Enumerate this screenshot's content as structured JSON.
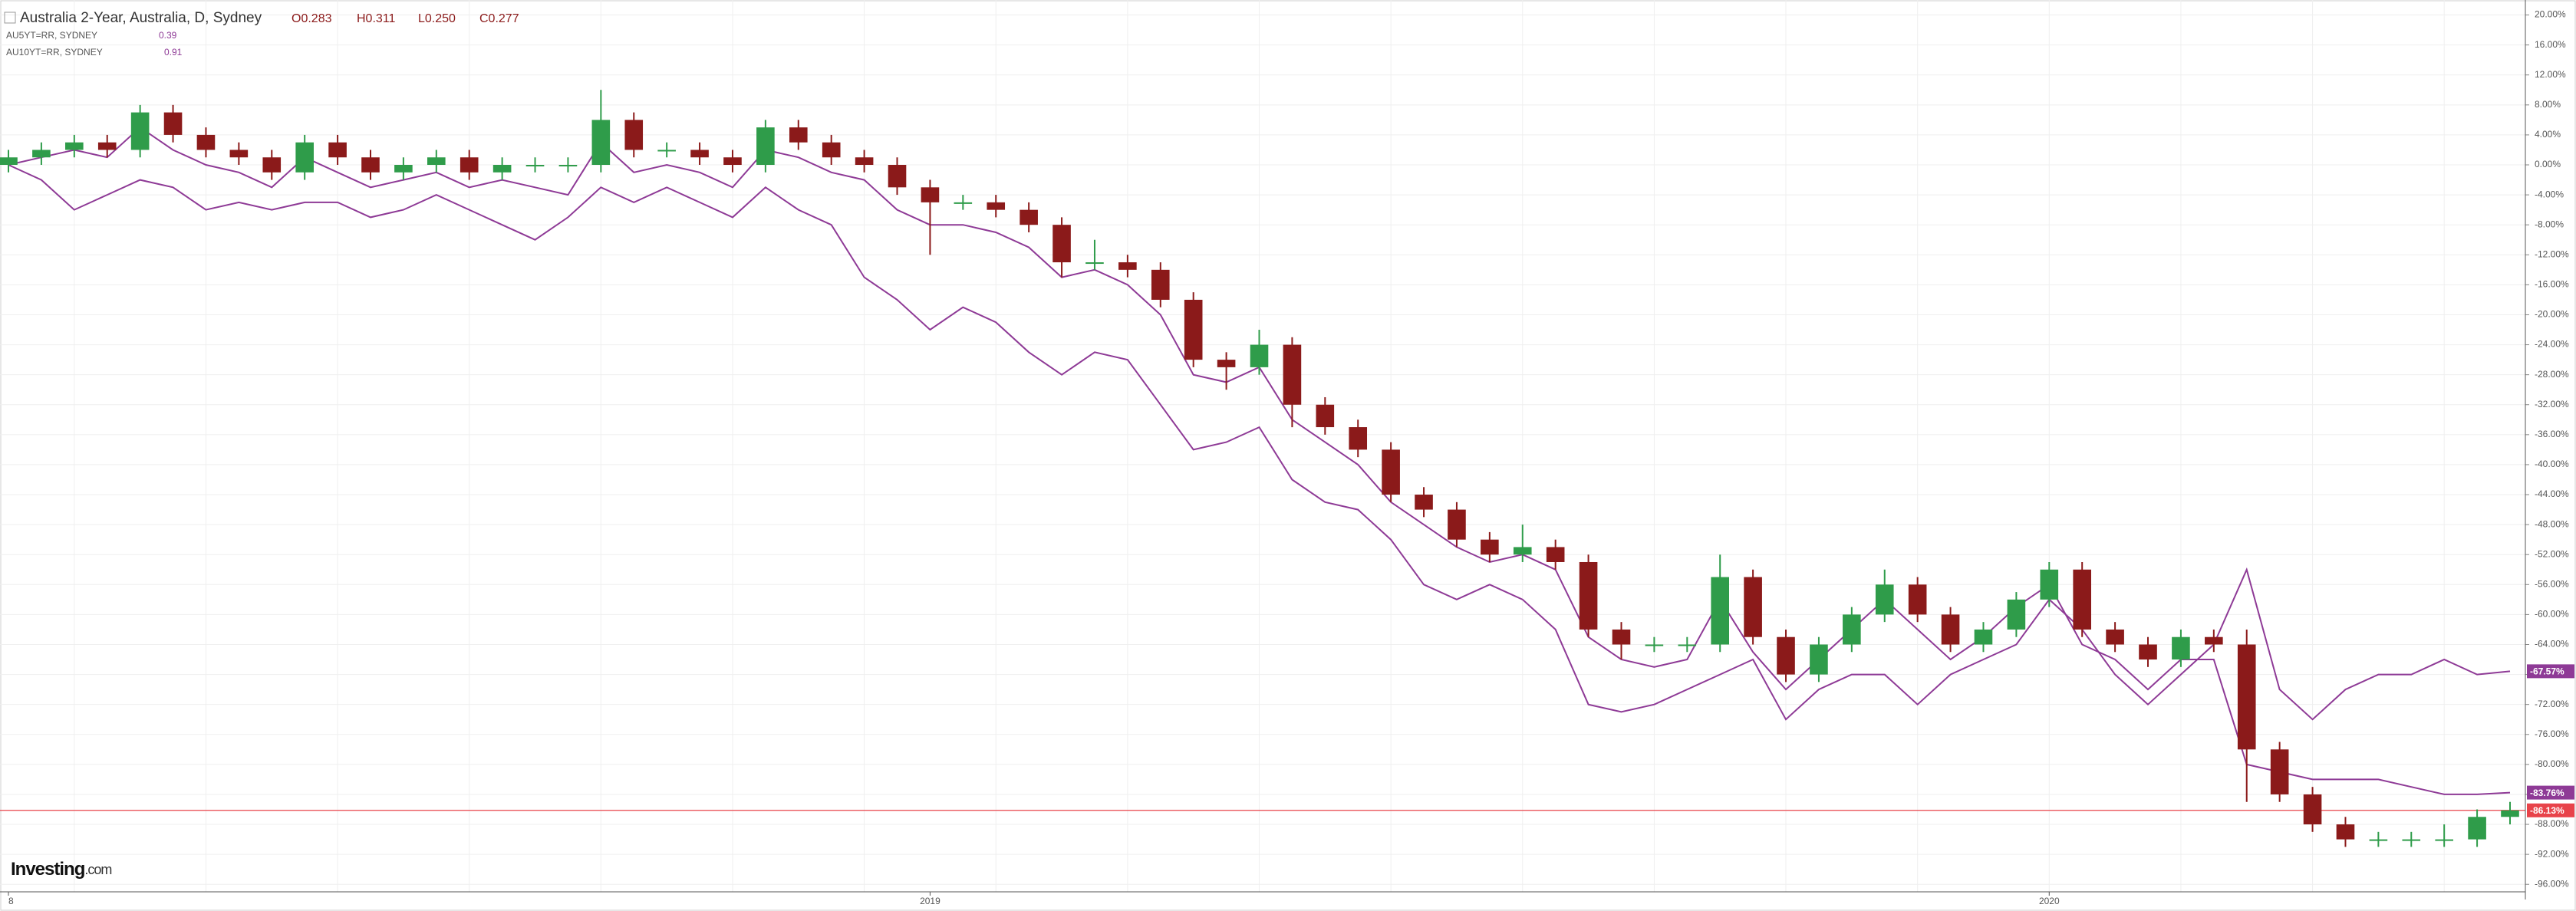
{
  "chart_data": {
    "type": "candlestick",
    "title": "Australia 2-Year, Australia, D, Sydney",
    "ohlc_labels": [
      "O0.283",
      "H0.311",
      "L0.250",
      "C0.277"
    ],
    "categories": [
      "8",
      null,
      null,
      null,
      null,
      null,
      null,
      null,
      null,
      null,
      null,
      null,
      null,
      null,
      null,
      null,
      null,
      null,
      null,
      null,
      null,
      null,
      null,
      null,
      null,
      null,
      null,
      null,
      "2019",
      null,
      null,
      null,
      null,
      null,
      null,
      null,
      null,
      null,
      null,
      null,
      null,
      null,
      null,
      null,
      null,
      null,
      null,
      null,
      null,
      null,
      null,
      null,
      null,
      null,
      null,
      null,
      null,
      null,
      null,
      null,
      null,
      null,
      "2020",
      null,
      null,
      null,
      null,
      null,
      null,
      null,
      null,
      null,
      null,
      null,
      null,
      null,
      null
    ],
    "candles": {
      "up_color": "#2f9c4a",
      "down_color": "#8b1a1a",
      "open": [
        0,
        1,
        2,
        3,
        2,
        7,
        4,
        2,
        1,
        -1,
        3,
        1,
        -1,
        0,
        1,
        -1,
        0,
        0,
        0,
        6,
        2,
        2,
        1,
        0,
        5,
        3,
        1,
        0,
        -3,
        -5,
        -5,
        -6,
        -8,
        -13,
        -13,
        -14,
        -18,
        -26,
        -27,
        -24,
        -32,
        -35,
        -38,
        -44,
        -46,
        -50,
        -52,
        -51,
        -53,
        -62,
        -64,
        -64,
        -64,
        -55,
        -63,
        -68,
        -64,
        -60,
        -56,
        -60,
        -64,
        -62,
        -58,
        -54,
        -62,
        -64,
        -66,
        -63,
        -64,
        -78,
        -84,
        -88,
        -90,
        -90,
        -90,
        -90,
        -87
      ],
      "high": [
        2,
        3,
        4,
        4,
        8,
        8,
        5,
        3,
        2,
        4,
        4,
        2,
        1,
        2,
        2,
        1,
        1,
        1,
        10,
        7,
        3,
        3,
        2,
        6,
        6,
        4,
        2,
        1,
        -2,
        -4,
        -4,
        -5,
        -7,
        -10,
        -12,
        -13,
        -17,
        -25,
        -22,
        -23,
        -31,
        -34,
        -37,
        -43,
        -45,
        -49,
        -48,
        -50,
        -52,
        -61,
        -63,
        -63,
        -52,
        -54,
        -62,
        -63,
        -59,
        -54,
        -55,
        -59,
        -61,
        -57,
        -53,
        -53,
        -61,
        -63,
        -62,
        -62,
        -62,
        -77,
        -83,
        -87,
        -89,
        -89,
        -88,
        -86,
        -85
      ],
      "low": [
        -1,
        0,
        1,
        1,
        1,
        3,
        1,
        0,
        -2,
        -2,
        0,
        -2,
        -2,
        -1,
        -2,
        -2,
        -1,
        -1,
        -1,
        1,
        1,
        0,
        -1,
        -1,
        2,
        0,
        -1,
        -4,
        -12,
        -6,
        -7,
        -9,
        -15,
        -14,
        -15,
        -19,
        -27,
        -30,
        -28,
        -35,
        -36,
        -39,
        -45,
        -47,
        -51,
        -53,
        -53,
        -54,
        -63,
        -66,
        -65,
        -65,
        -65,
        -64,
        -69,
        -69,
        -65,
        -61,
        -61,
        -65,
        -65,
        -63,
        -59,
        -63,
        -65,
        -67,
        -67,
        -65,
        -85,
        -85,
        -89,
        -91,
        -91,
        -91,
        -91,
        -91,
        -88
      ],
      "close": [
        1,
        2,
        3,
        2,
        7,
        4,
        2,
        1,
        -1,
        3,
        1,
        -1,
        0,
        1,
        -1,
        0,
        0,
        0,
        6,
        2,
        2,
        1,
        0,
        5,
        3,
        1,
        0,
        -3,
        -5,
        -5,
        -6,
        -8,
        -13,
        -13,
        -14,
        -18,
        -26,
        -27,
        -24,
        -32,
        -35,
        -38,
        -44,
        -46,
        -50,
        -52,
        -51,
        -53,
        -62,
        -64,
        -64,
        -64,
        -55,
        -63,
        -68,
        -64,
        -60,
        -56,
        -60,
        -64,
        -62,
        -58,
        -54,
        -62,
        -64,
        -66,
        -63,
        -64,
        -78,
        -84,
        -88,
        -90,
        -90,
        -90,
        -90,
        -87,
        -86.13
      ]
    },
    "price_line": {
      "value": -86.13,
      "label": "-86.13%",
      "color": "#e8434a"
    },
    "series": [
      {
        "name": "AU5YT=RR, SYDNEY",
        "legend_value": 0.39,
        "color": "#8e3a96",
        "values": [
          0,
          1,
          2,
          1,
          5,
          2,
          0,
          -1,
          -3,
          1,
          -1,
          -3,
          -2,
          -1,
          -3,
          -2,
          -3,
          -4,
          3,
          -1,
          0,
          -1,
          -3,
          2,
          1,
          -1,
          -2,
          -6,
          -8,
          -8,
          -9,
          -11,
          -15,
          -14,
          -16,
          -20,
          -28,
          -29,
          -27,
          -34,
          -37,
          -40,
          -45,
          -48,
          -51,
          -53,
          -52,
          -54,
          -63,
          -66,
          -67,
          -66,
          -58,
          -65,
          -70,
          -66,
          -62,
          -58,
          -62,
          -66,
          -63,
          -59,
          -56,
          -64,
          -66,
          -70,
          -66,
          -66,
          -80,
          -81,
          -82,
          -82,
          -82,
          -83,
          -84,
          -84,
          -83.76
        ],
        "value_labels": [
          null,
          null,
          null,
          null,
          null,
          null,
          null,
          null,
          null,
          null,
          null,
          null,
          null,
          null,
          null,
          null,
          null,
          null,
          null,
          null,
          null,
          null,
          null,
          null,
          null,
          null,
          null,
          null,
          null,
          null,
          null,
          null,
          null,
          null,
          null,
          null,
          null,
          null,
          null,
          null,
          null,
          null,
          null,
          null,
          null,
          null,
          null,
          null,
          null,
          null,
          null,
          null,
          null,
          null,
          null,
          null,
          null,
          null,
          null,
          null,
          null,
          null,
          null,
          null,
          null,
          null,
          null,
          null,
          null,
          null,
          null,
          null,
          null,
          null,
          null,
          null,
          "-83.76%"
        ]
      },
      {
        "name": "AU10YT=RR, SYDNEY",
        "legend_value": 0.91,
        "color": "#8e3a96",
        "values": [
          0,
          -2,
          -6,
          -4,
          -2,
          -3,
          -6,
          -5,
          -6,
          -5,
          -5,
          -7,
          -6,
          -4,
          -6,
          -8,
          -10,
          -7,
          -3,
          -5,
          -3,
          -5,
          -7,
          -3,
          -6,
          -8,
          -15,
          -18,
          -22,
          -19,
          -21,
          -25,
          -28,
          -25,
          -26,
          -32,
          -38,
          -37,
          -35,
          -42,
          -45,
          -46,
          -50,
          -56,
          -58,
          -56,
          -58,
          -62,
          -72,
          -73,
          -72,
          -70,
          -68,
          -66,
          -74,
          -70,
          -68,
          -68,
          -72,
          -68,
          -66,
          -64,
          -58,
          -62,
          -68,
          -72,
          -68,
          -64,
          -54,
          -70,
          -74,
          -70,
          -68,
          -68,
          -66,
          -68,
          -67.57
        ],
        "value_labels": [
          null,
          null,
          null,
          null,
          null,
          null,
          null,
          null,
          null,
          null,
          null,
          null,
          null,
          null,
          null,
          null,
          null,
          null,
          null,
          null,
          null,
          null,
          null,
          null,
          null,
          null,
          null,
          null,
          null,
          null,
          null,
          null,
          null,
          null,
          null,
          null,
          null,
          null,
          null,
          null,
          null,
          null,
          null,
          null,
          null,
          null,
          null,
          null,
          null,
          null,
          null,
          null,
          null,
          null,
          null,
          null,
          null,
          null,
          null,
          null,
          null,
          null,
          null,
          null,
          null,
          null,
          null,
          null,
          null,
          null,
          null,
          null,
          null,
          null,
          null,
          null,
          "-67.57%"
        ]
      }
    ],
    "ylim": [
      -97,
      22
    ],
    "yticks": [
      {
        "value": 20,
        "label": "20.00%"
      },
      {
        "value": 16,
        "label": "16.00%"
      },
      {
        "value": 12,
        "label": "12.00%"
      },
      {
        "value": 8,
        "label": "8.00%"
      },
      {
        "value": 4,
        "label": "4.00%"
      },
      {
        "value": 0,
        "label": "0.00%"
      },
      {
        "value": -4,
        "label": "-4.00%"
      },
      {
        "value": -8,
        "label": "-8.00%"
      },
      {
        "value": -12,
        "label": "-12.00%"
      },
      {
        "value": -16,
        "label": "-16.00%"
      },
      {
        "value": -20,
        "label": "-20.00%"
      },
      {
        "value": -24,
        "label": "-24.00%"
      },
      {
        "value": -28,
        "label": "-28.00%"
      },
      {
        "value": -32,
        "label": "-32.00%"
      },
      {
        "value": -36,
        "label": "-36.00%"
      },
      {
        "value": -40,
        "label": "-40.00%"
      },
      {
        "value": -44,
        "label": "-44.00%"
      },
      {
        "value": -48,
        "label": "-48.00%"
      },
      {
        "value": -52,
        "label": "-52.00%"
      },
      {
        "value": -56,
        "label": "-56.00%"
      },
      {
        "value": -60,
        "label": "-60.00%"
      },
      {
        "value": -64,
        "label": "-64.00%"
      },
      {
        "value": -68,
        "label": "-68.00%"
      },
      {
        "value": -72,
        "label": "-72.00%"
      },
      {
        "value": -76,
        "label": "-76.00%"
      },
      {
        "value": -80,
        "label": "-80.00%"
      },
      {
        "value": -84,
        "label": "-84.00%"
      },
      {
        "value": -88,
        "label": "-88.00%"
      },
      {
        "value": -92,
        "label": "-92.00%"
      },
      {
        "value": -96,
        "label": "-96.00%"
      }
    ],
    "grid": true,
    "watermark": {
      "brand": "Investing",
      "suffix": ".com"
    }
  }
}
